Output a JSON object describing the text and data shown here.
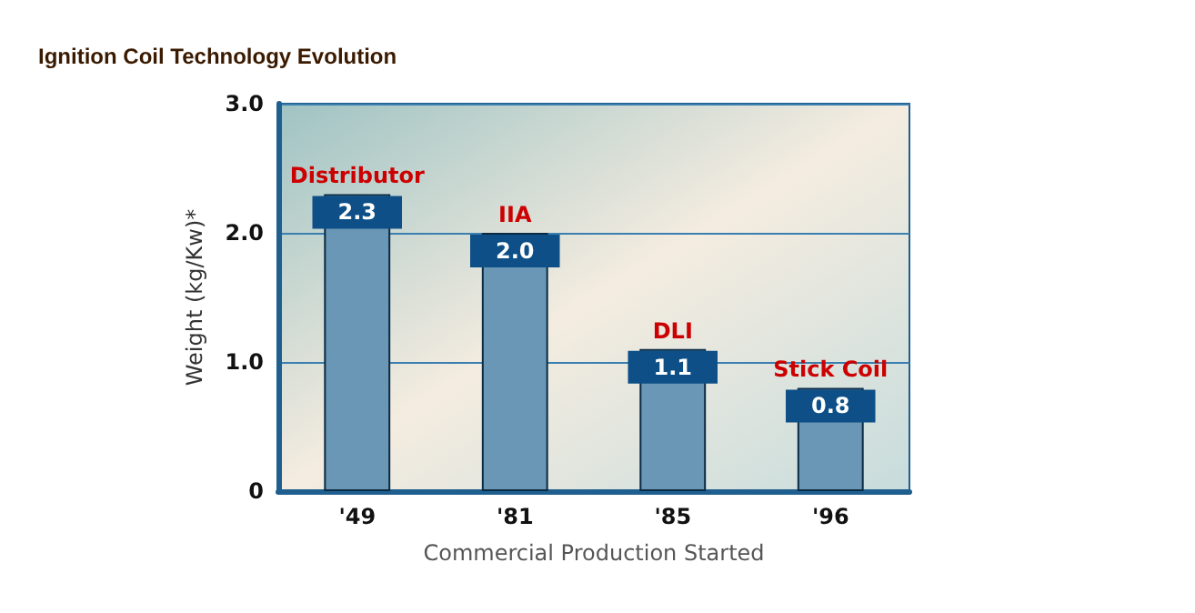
{
  "chart_data": {
    "type": "bar",
    "title": "Ignition Coil Technology Evolution",
    "xlabel": "Commercial Production Started",
    "ylabel": "Weight (kg/Kw)*",
    "categories": [
      "'49",
      "'81",
      "'85",
      "'96"
    ],
    "values": [
      2.3,
      2.0,
      1.1,
      0.8
    ],
    "color": "#6a97b5",
    "value_labels": [
      "2.3",
      "2.0",
      "1.1",
      "0.8"
    ],
    "ylim": [
      0,
      3.0
    ],
    "yticks": [
      {
        "value": 0,
        "label": "0"
      },
      {
        "value": 1,
        "label": "1.0"
      },
      {
        "value": 2,
        "label": "2.0"
      },
      {
        "value": 3,
        "label": "3.0"
      }
    ],
    "grid": "y",
    "annotations": [
      {
        "text": "Distributor",
        "x": "'49",
        "y": 2.3
      },
      {
        "text": "IIA",
        "x": "'81",
        "y": 2.0
      },
      {
        "text": "DLI",
        "x": "'85",
        "y": 1.1
      },
      {
        "text": "Stick Coil",
        "x": "'96",
        "y": 0.8
      }
    ]
  }
}
